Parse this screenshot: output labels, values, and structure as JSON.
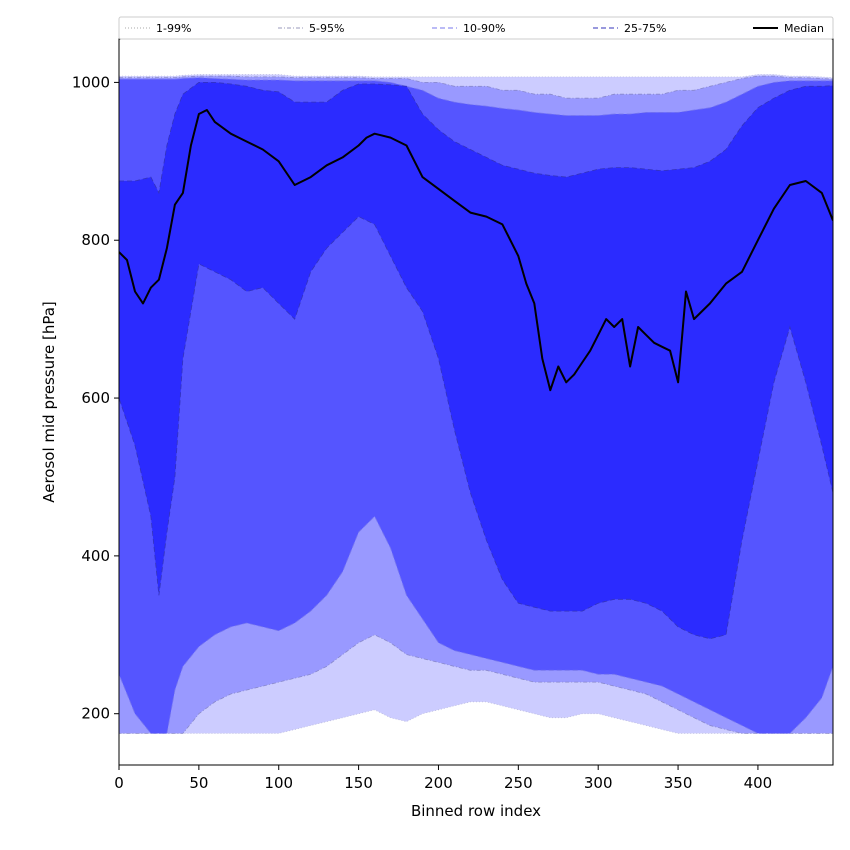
{
  "chart_data": {
    "type": "area",
    "xlabel": "Binned row index",
    "ylabel": "Aerosol mid pressure [hPa]",
    "xlim": [
      0,
      447
    ],
    "ylim": [
      135,
      1055
    ],
    "y_inverted": false,
    "grid": false,
    "legend_placement": "top, above plot",
    "x_ticks": [
      0,
      50,
      100,
      150,
      200,
      250,
      300,
      350,
      400
    ],
    "y_ticks": [
      200,
      400,
      600,
      800,
      1000
    ],
    "x_tick_labels": [
      "0",
      "50",
      "100",
      "150",
      "200",
      "250",
      "300",
      "350",
      "400"
    ],
    "y_tick_labels": [
      "200",
      "400",
      "600",
      "800",
      "1000"
    ],
    "x": [
      0,
      10,
      20,
      25,
      30,
      35,
      40,
      50,
      60,
      70,
      80,
      90,
      100,
      110,
      120,
      130,
      140,
      150,
      160,
      170,
      180,
      190,
      200,
      210,
      220,
      230,
      240,
      250,
      260,
      270,
      280,
      290,
      300,
      310,
      320,
      330,
      340,
      350,
      360,
      370,
      380,
      390,
      400,
      410,
      420,
      430,
      440,
      447
    ],
    "bands": [
      {
        "name": "1-99%",
        "color": "#ccccff",
        "line_color": "#bbbbdd",
        "lower": [
          175,
          175,
          175,
          175,
          175,
          175,
          175,
          175,
          175,
          175,
          175,
          175,
          175,
          180,
          185,
          190,
          195,
          200,
          205,
          195,
          190,
          200,
          205,
          210,
          215,
          215,
          210,
          205,
          200,
          195,
          195,
          200,
          200,
          195,
          190,
          185,
          180,
          175,
          175,
          175,
          175,
          175,
          175,
          175,
          175,
          175,
          175,
          175
        ],
        "upper": [
          1008,
          1008,
          1008,
          1008,
          1008,
          1008,
          1009,
          1010,
          1010,
          1010,
          1010,
          1010,
          1010,
          1008,
          1008,
          1008,
          1008,
          1008,
          1007,
          1007,
          1007,
          1007,
          1007,
          1007,
          1007,
          1007,
          1007,
          1007,
          1007,
          1007,
          1007,
          1007,
          1007,
          1007,
          1007,
          1007,
          1007,
          1007,
          1007,
          1007,
          1007,
          1007,
          1010,
          1010,
          1008,
          1008,
          1007,
          1006
        ]
      },
      {
        "name": "5-95%",
        "color": "#9999ff",
        "line_color": "#8888cc",
        "lower": [
          175,
          175,
          175,
          175,
          175,
          175,
          175,
          200,
          215,
          225,
          230,
          235,
          240,
          245,
          250,
          260,
          275,
          290,
          300,
          290,
          275,
          270,
          265,
          260,
          255,
          255,
          250,
          245,
          240,
          240,
          240,
          240,
          240,
          235,
          230,
          225,
          215,
          205,
          195,
          185,
          180,
          175,
          175,
          175,
          175,
          175,
          175,
          175
        ],
        "upper": [
          1006,
          1006,
          1006,
          1006,
          1006,
          1006,
          1007,
          1008,
          1008,
          1008,
          1007,
          1007,
          1007,
          1006,
          1006,
          1006,
          1006,
          1006,
          1005,
          1005,
          1005,
          1000,
          1000,
          995,
          995,
          995,
          990,
          990,
          985,
          985,
          980,
          980,
          980,
          985,
          985,
          985,
          985,
          990,
          990,
          995,
          1000,
          1005,
          1008,
          1008,
          1006,
          1006,
          1005,
          1004
        ]
      },
      {
        "name": "10-90%",
        "color": "#5555ff",
        "line_color": "#7777ee",
        "lower": [
          250,
          200,
          175,
          175,
          175,
          230,
          260,
          285,
          300,
          310,
          315,
          310,
          305,
          315,
          330,
          350,
          380,
          430,
          450,
          410,
          350,
          320,
          290,
          280,
          275,
          270,
          265,
          260,
          255,
          255,
          255,
          255,
          250,
          250,
          245,
          240,
          235,
          225,
          215,
          205,
          195,
          185,
          175,
          175,
          175,
          195,
          220,
          260
        ],
        "upper": [
          1004,
          1004,
          1004,
          1004,
          1004,
          1004,
          1005,
          1006,
          1005,
          1004,
          1003,
          1003,
          1003,
          1002,
          1002,
          1002,
          1002,
          1002,
          1002,
          1000,
          995,
          990,
          980,
          975,
          972,
          970,
          967,
          965,
          962,
          960,
          958,
          958,
          958,
          960,
          960,
          962,
          962,
          962,
          965,
          968,
          975,
          985,
          995,
          1000,
          1002,
          1002,
          1002,
          1002
        ]
      },
      {
        "name": "25-75%",
        "color": "#2b2bff",
        "line_color": "#3333bb",
        "lower": [
          600,
          540,
          450,
          350,
          430,
          500,
          650,
          770,
          760,
          750,
          735,
          740,
          720,
          700,
          760,
          790,
          810,
          830,
          820,
          780,
          740,
          710,
          650,
          560,
          480,
          420,
          370,
          340,
          335,
          330,
          330,
          330,
          340,
          345,
          345,
          340,
          330,
          310,
          300,
          295,
          300,
          420,
          520,
          620,
          690,
          620,
          540,
          480
        ],
        "upper": [
          875,
          875,
          880,
          860,
          920,
          960,
          985,
          1000,
          1000,
          998,
          995,
          990,
          988,
          975,
          975,
          975,
          990,
          998,
          998,
          997,
          995,
          960,
          940,
          925,
          915,
          905,
          895,
          890,
          885,
          882,
          880,
          885,
          890,
          892,
          892,
          890,
          888,
          890,
          892,
          900,
          915,
          945,
          968,
          980,
          990,
          995,
          995,
          996
        ]
      }
    ],
    "median": {
      "name": "Median",
      "color": "#000000",
      "x": [
        0,
        5,
        10,
        15,
        20,
        25,
        30,
        35,
        40,
        45,
        50,
        55,
        60,
        70,
        80,
        90,
        100,
        110,
        120,
        130,
        140,
        150,
        155,
        160,
        170,
        180,
        190,
        200,
        210,
        220,
        230,
        240,
        250,
        255,
        260,
        265,
        270,
        275,
        280,
        285,
        290,
        295,
        300,
        305,
        310,
        315,
        320,
        325,
        330,
        335,
        340,
        345,
        350,
        355,
        360,
        370,
        380,
        390,
        400,
        410,
        420,
        430,
        440,
        447
      ],
      "y": [
        785,
        775,
        735,
        720,
        740,
        750,
        790,
        845,
        860,
        920,
        960,
        965,
        950,
        935,
        925,
        915,
        900,
        870,
        880,
        895,
        905,
        920,
        930,
        935,
        930,
        920,
        880,
        865,
        850,
        835,
        830,
        820,
        780,
        745,
        720,
        650,
        610,
        640,
        620,
        630,
        645,
        660,
        680,
        700,
        690,
        700,
        640,
        690,
        680,
        670,
        665,
        660,
        620,
        735,
        700,
        720,
        745,
        760,
        800,
        840,
        870,
        875,
        860,
        825
      ]
    },
    "legend": [
      {
        "label": "1-99%",
        "style": "dotted",
        "color": "#aaaaaa"
      },
      {
        "label": "5-95%",
        "style": "dashdot",
        "color": "#9999bb"
      },
      {
        "label": "10-90%",
        "style": "dashed",
        "color": "#7777ee"
      },
      {
        "label": "25-75%",
        "style": "dashed",
        "color": "#3333bb"
      },
      {
        "label": "Median",
        "style": "solid",
        "color": "#000000"
      }
    ]
  }
}
